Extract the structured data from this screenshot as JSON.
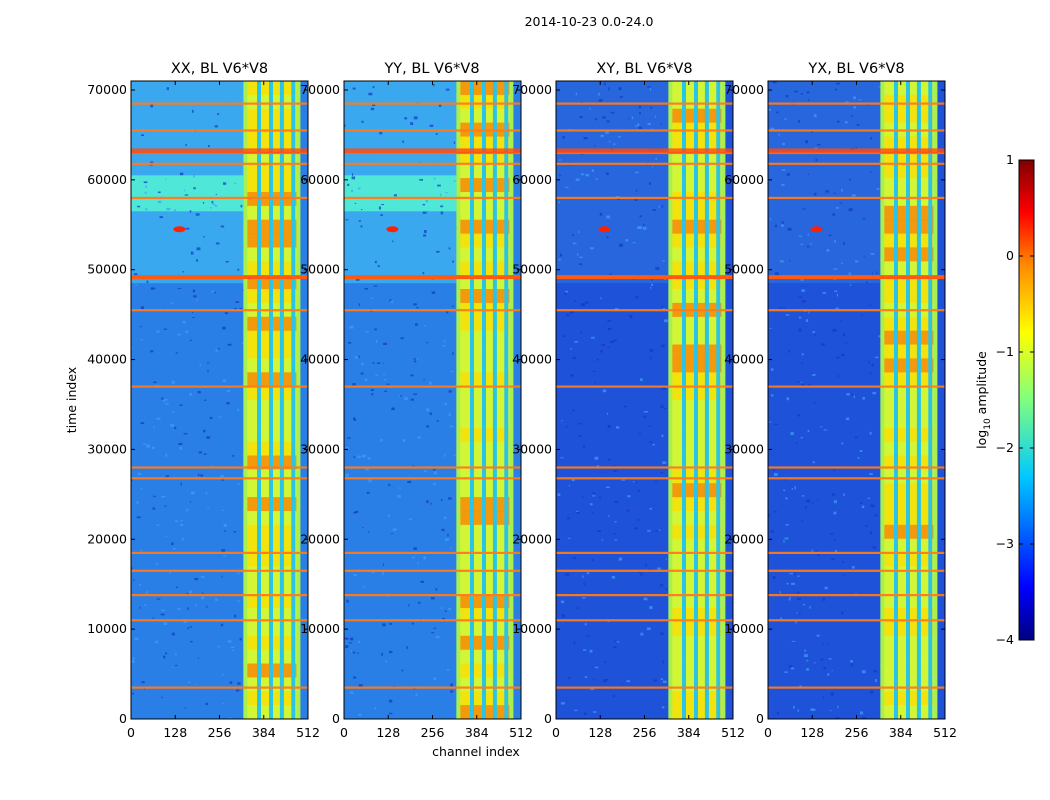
{
  "chart_data": {
    "type": "heatmap",
    "suptitle": "2014-10-23 0.0-24.0",
    "xlabel": "channel index",
    "ylabel": "time index",
    "xlim": [
      0,
      512
    ],
    "ylim": [
      0,
      71000
    ],
    "x_ticks": [
      "0",
      "128",
      "256",
      "384",
      "512"
    ],
    "x_tick_values": [
      0,
      128,
      256,
      384,
      512
    ],
    "y_ticks": [
      "0",
      "10000",
      "20000",
      "30000",
      "40000",
      "50000",
      "60000",
      "70000"
    ],
    "y_tick_values": [
      0,
      10000,
      20000,
      30000,
      40000,
      50000,
      60000,
      70000
    ],
    "panels": [
      {
        "title": "XX, BL V6*V8",
        "bright": true
      },
      {
        "title": "YY, BL V6*V8",
        "bright": true
      },
      {
        "title": "XY, BL V6*V8",
        "bright": false
      },
      {
        "title": "YX, BL V6*V8",
        "bright": false
      }
    ],
    "bright_band_channels": [
      325,
      490
    ],
    "flagged_rows": [
      3500,
      11000,
      13800,
      16500,
      18500,
      26800,
      28000,
      37000,
      45500,
      49200,
      58000,
      61800,
      63000,
      65500,
      68500
    ],
    "colorbar": {
      "label": "log10 amplitude",
      "label_base": "log",
      "label_sub": "10",
      "label_rest": " amplitude",
      "range": [
        -4,
        1
      ],
      "ticks": [
        "1",
        "0",
        "−1",
        "−2",
        "−3",
        "−4"
      ],
      "tick_values": [
        1,
        0,
        -1,
        -2,
        -3,
        -4
      ],
      "colors": [
        "#00007f",
        "#0000ff",
        "#007fff",
        "#00ffff",
        "#7fff7f",
        "#ffff00",
        "#ff7f00",
        "#ff0000",
        "#7f0000"
      ]
    }
  }
}
